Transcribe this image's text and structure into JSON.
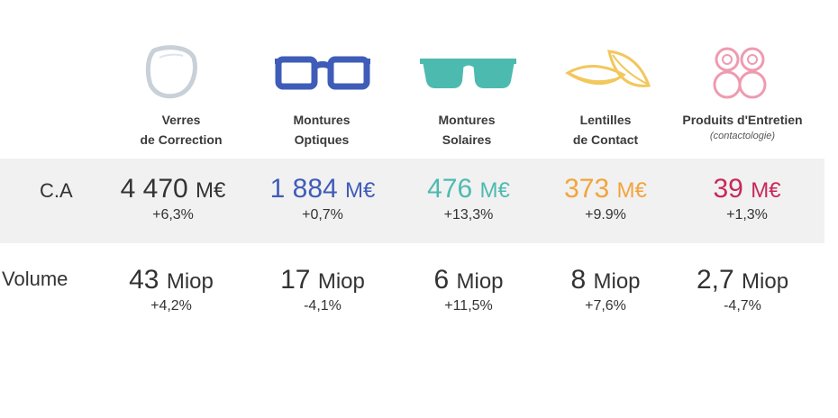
{
  "categories": [
    {
      "id": "verres",
      "label_line1": "Verres",
      "label_line2": "de Correction",
      "sublabel": "",
      "icon": "round-lens-icon",
      "color": "#c8d0d8"
    },
    {
      "id": "montures-optiques",
      "label_line1": "Montures",
      "label_line2": "Optiques",
      "sublabel": "",
      "icon": "eyeglasses-icon",
      "color": "#3f5cb8"
    },
    {
      "id": "montures-solaires",
      "label_line1": "Montures",
      "label_line2": "Solaires",
      "sublabel": "",
      "icon": "sunglasses-icon",
      "color": "#4dbab0"
    },
    {
      "id": "lentilles",
      "label_line1": "Lentilles",
      "label_line2": "de Contact",
      "sublabel": "",
      "icon": "contact-lens-icon",
      "color": "#f2a43c"
    },
    {
      "id": "produits",
      "label_line1": "Produits d'Entretien",
      "label_line2": "",
      "sublabel": "(contactologie)",
      "icon": "lens-case-icon",
      "color": "#c8285a"
    }
  ],
  "rows": {
    "ca": {
      "label": "C.A",
      "unit": "M€",
      "values": [
        "4 470",
        "1 884",
        "476",
        "373",
        "39"
      ],
      "changes": [
        "+6,3%",
        "+0,7%",
        "+13,3%",
        "+9.9%",
        "+1,3%"
      ]
    },
    "volume": {
      "label": "Volume",
      "unit": "Miop",
      "values": [
        "43",
        "17",
        "6",
        "8",
        "2,7"
      ],
      "changes": [
        "+4,2%",
        "-4,1%",
        "+11,5%",
        "+7,6%",
        "-4,7%"
      ]
    }
  },
  "colors": {
    "band": "#f1f1f1",
    "text": "#333333",
    "lens_case_pink": "#ee9bb0",
    "lentilles_outline": "#f2c75c"
  }
}
